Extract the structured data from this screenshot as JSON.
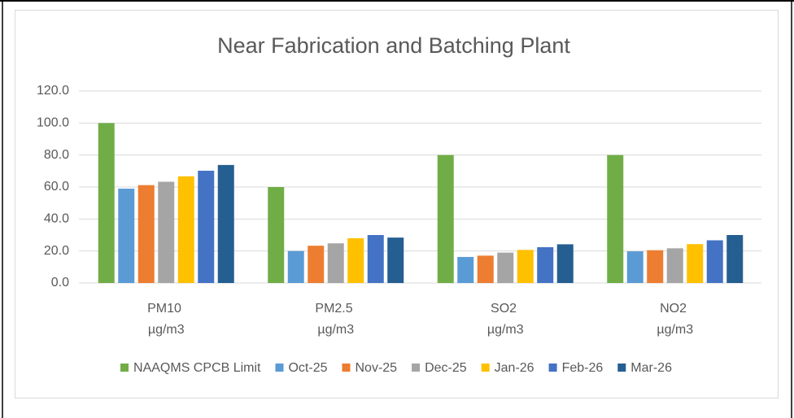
{
  "chart_data": {
    "type": "bar",
    "title": "Near Fabrication and Batching Plant",
    "categories": [
      "PM10 µg/m3",
      "PM2.5 µg/m3",
      "SO2 µg/m3",
      "NO2 µg/m3"
    ],
    "series": [
      {
        "name": "NAAQMS CPCB Limit",
        "color": "#70ad47",
        "values": [
          100,
          60,
          80,
          80
        ]
      },
      {
        "name": "Oct-25",
        "color": "#5b9bd5",
        "values": [
          59,
          20,
          16.3,
          19.8
        ]
      },
      {
        "name": "Nov-25",
        "color": "#ed7d31",
        "values": [
          61.2,
          23.3,
          17.1,
          20.5
        ]
      },
      {
        "name": "Dec-25",
        "color": "#a5a5a5",
        "values": [
          63.3,
          24.8,
          19,
          21.7
        ]
      },
      {
        "name": "Jan-26",
        "color": "#ffc000",
        "values": [
          66.7,
          28,
          20.7,
          24.3
        ]
      },
      {
        "name": "Feb-26",
        "color": "#4472c4",
        "values": [
          70.2,
          30,
          22.4,
          26.7
        ]
      },
      {
        "name": "Mar-26",
        "color": "#255e91",
        "values": [
          73.8,
          28.4,
          24.2,
          30
        ]
      }
    ],
    "ylim": [
      0,
      120
    ],
    "yticks": [
      {
        "value": 0,
        "label": "0.0"
      },
      {
        "value": 20,
        "label": "20.0"
      },
      {
        "value": 40,
        "label": "40.0"
      },
      {
        "value": 60,
        "label": "60.0"
      },
      {
        "value": 80,
        "label": "80.0"
      },
      {
        "value": 100,
        "label": "100.0"
      },
      {
        "value": 120,
        "label": "120.0"
      }
    ],
    "grid": true,
    "legend": "bottom"
  }
}
